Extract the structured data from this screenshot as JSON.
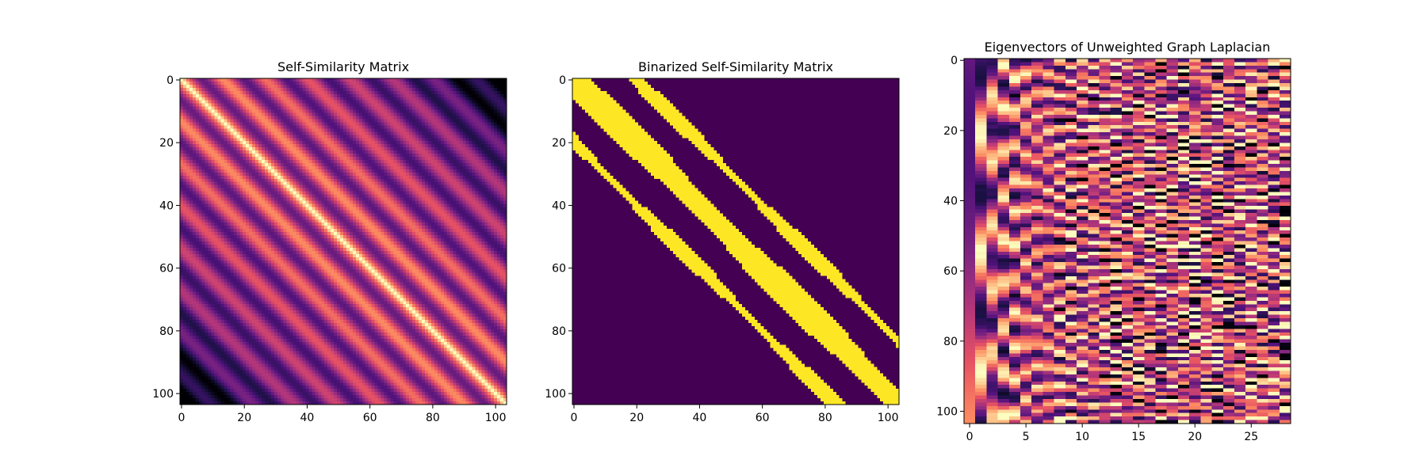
{
  "chart_data": [
    {
      "type": "heatmap",
      "title": "Self-Similarity Matrix",
      "xlabel": "",
      "ylabel": "",
      "rows": 104,
      "cols": 104,
      "xlim": [
        -0.5,
        103.5
      ],
      "ylim": [
        103.5,
        -0.5
      ],
      "x_ticks": [
        0,
        20,
        40,
        60,
        80,
        100
      ],
      "y_ticks": [
        0,
        20,
        40,
        60,
        80,
        100
      ],
      "colormap": "magma",
      "pattern": {
        "kind": "diagonal-bands",
        "main_diagonal_value": 1.0,
        "band_period": 27,
        "band_peak": 0.85,
        "decay_with_distance": 0.55
      },
      "grid": false,
      "legend": "none"
    },
    {
      "type": "heatmap",
      "title": "Binarized Self-Similarity Matrix",
      "xlabel": "",
      "ylabel": "",
      "rows": 104,
      "cols": 104,
      "xlim": [
        -0.5,
        103.5
      ],
      "ylim": [
        103.5,
        -0.5
      ],
      "x_ticks": [
        0,
        20,
        40,
        60,
        80,
        100
      ],
      "y_ticks": [
        0,
        20,
        40,
        60,
        80,
        100
      ],
      "colormap": "viridis-binary",
      "colors": {
        "off": "#440154",
        "on": "#fde725"
      },
      "bands": [
        {
          "offset": 0,
          "half_width": 5,
          "range": [
            0,
            104
          ]
        },
        {
          "offset": 20,
          "half_width": 2,
          "range": [
            0,
            104
          ]
        },
        {
          "offset": -20,
          "half_width": 2,
          "range": [
            0,
            104
          ]
        }
      ],
      "grid": false,
      "legend": "none"
    },
    {
      "type": "heatmap",
      "title": "Eigenvectors of Unweighted Graph Laplacian",
      "xlabel": "",
      "ylabel": "",
      "rows": 104,
      "cols": 29,
      "xlim": [
        -0.5,
        28.5
      ],
      "ylim": [
        103.5,
        -0.5
      ],
      "x_ticks": [
        0,
        5,
        10,
        15,
        20,
        25
      ],
      "y_ticks": [
        0,
        20,
        40,
        60,
        80,
        100
      ],
      "colormap": "magma",
      "pattern": {
        "kind": "eigenvector-stripes",
        "low_order_smooth": true,
        "frequency_growth_per_column": 0.5
      },
      "grid": false,
      "legend": "none"
    }
  ],
  "colors": {
    "magma_stops": [
      "#000004",
      "#1d1147",
      "#51127c",
      "#822681",
      "#b73779",
      "#e75263",
      "#fc8961",
      "#fec287",
      "#fcfdbf"
    ],
    "axis": "#000000",
    "background": "#ffffff"
  }
}
